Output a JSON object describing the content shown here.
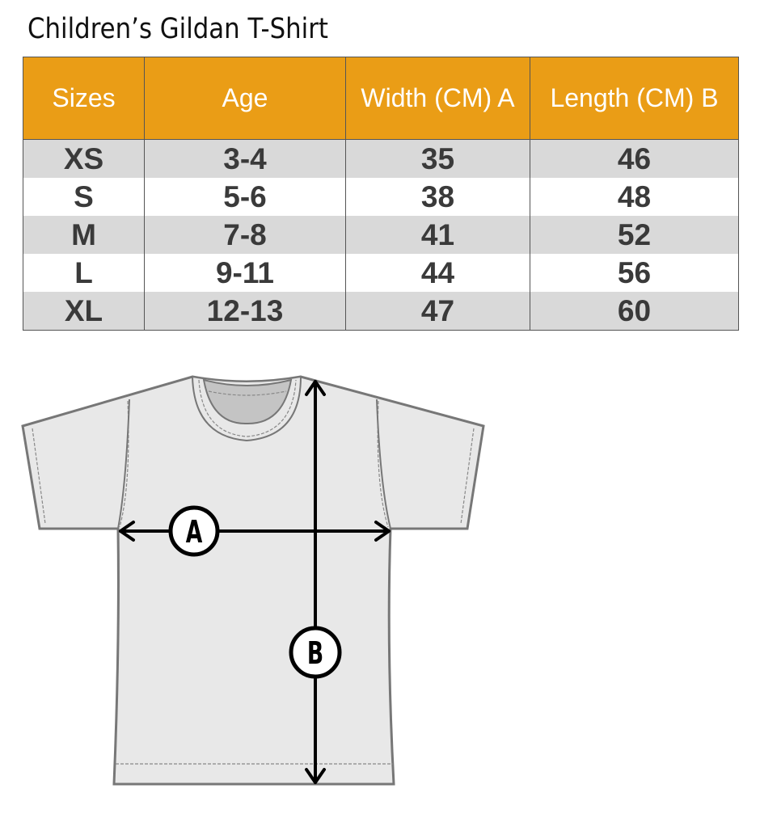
{
  "title": "Children’s Gildan T-Shirt",
  "table": {
    "headers": [
      "Sizes",
      "Age",
      "Width (CM) A",
      "Length  (CM) B"
    ],
    "rows": [
      [
        "XS",
        "3-4",
        "35",
        "46"
      ],
      [
        "S",
        "5-6",
        "38",
        "48"
      ],
      [
        "M",
        "7-8",
        "41",
        "52"
      ],
      [
        "L",
        "9-11",
        "44",
        "56"
      ],
      [
        "XL",
        "12-13",
        "47",
        "60"
      ]
    ]
  },
  "diagram": {
    "label_a": "A",
    "label_b": "B"
  },
  "colors": {
    "header": "#ea9d16",
    "stripe": "#d9d9d9",
    "shirt": "#e8e8e8"
  }
}
